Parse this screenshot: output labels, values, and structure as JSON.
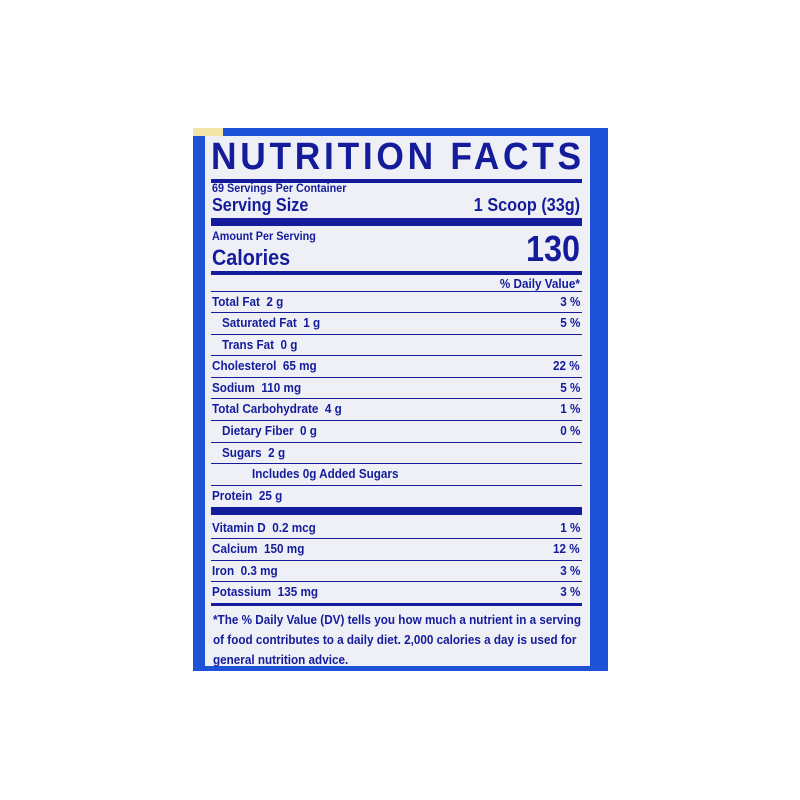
{
  "label": {
    "title": "NUTRITION FACTS",
    "servings_per_container": "69 Servings Per Container",
    "serving_size_label": "Serving Size",
    "serving_size_value": "1 Scoop (33g)",
    "amount_per_serving": "Amount Per Serving",
    "calories_label": "Calories",
    "calories_value": "130",
    "daily_value_header": "% Daily Value*",
    "nutrients": [
      {
        "name": "Total Fat",
        "amount": "2 g",
        "dv": "3 %"
      },
      {
        "name": "Saturated Fat",
        "amount": "1 g",
        "dv": "5 %"
      },
      {
        "name": "Trans Fat",
        "amount": "0 g",
        "dv": ""
      },
      {
        "name": "Cholesterol",
        "amount": "65 mg",
        "dv": "22 %"
      },
      {
        "name": "Sodium",
        "amount": "110 mg",
        "dv": "5 %"
      },
      {
        "name": "Total Carbohydrate",
        "amount": "4 g",
        "dv": "1 %"
      },
      {
        "name": "Dietary Fiber",
        "amount": "0 g",
        "dv": "0 %"
      },
      {
        "name": "Sugars",
        "amount": "2 g",
        "dv": ""
      },
      {
        "name": "Includes 0g Added Sugars",
        "amount": "",
        "dv": ""
      },
      {
        "name": "Protein",
        "amount": "25 g",
        "dv": ""
      }
    ],
    "vitamins": [
      {
        "name": "Vitamin D",
        "amount": "0.2 mcg",
        "dv": "1 %"
      },
      {
        "name": "Calcium",
        "amount": "150 mg",
        "dv": "12 %"
      },
      {
        "name": "Iron",
        "amount": "0.3 mg",
        "dv": "3 %"
      },
      {
        "name": "Potassium",
        "amount": "135 mg",
        "dv": "3 %"
      }
    ],
    "footnote": "*The % Daily Value (DV) tells you how much a nutrient in a serving of food contributes to a daily diet. 2,000 calories a day is used for general nutrition advice."
  },
  "colors": {
    "frame": "#1d52d6",
    "text": "#141c9c",
    "panel": "#eef0f6"
  }
}
